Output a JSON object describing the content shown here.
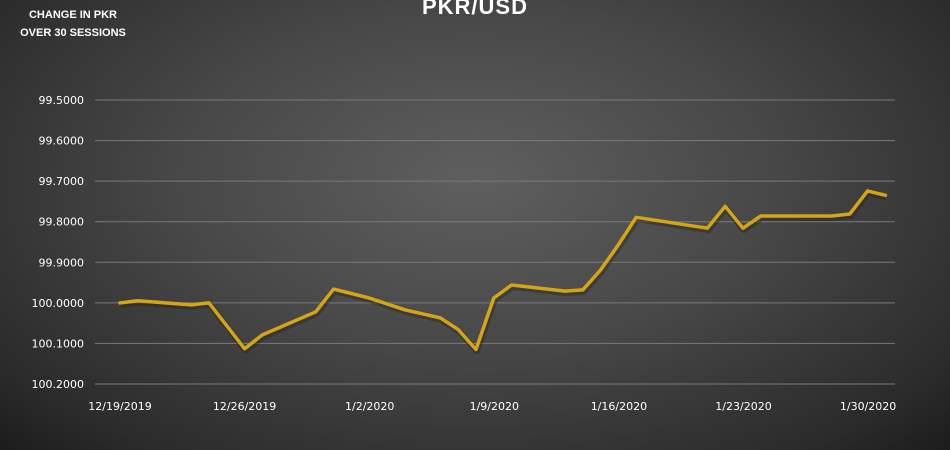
{
  "chart_data": {
    "type": "line",
    "title": "PKR/USD",
    "subtitle": "CHANGE IN PKR OVER 30 SESSIONS",
    "xlabel": "",
    "ylabel": "",
    "y_reversed": true,
    "ylim": [
      99.5,
      100.2
    ],
    "yticks": [
      "99.5000",
      "99.6000",
      "99.7000",
      "99.8000",
      "99.9000",
      "100.0000",
      "100.1000",
      "100.2000"
    ],
    "xticks": [
      "12/19/2019",
      "12/26/2019",
      "1/2/2020",
      "1/9/2020",
      "1/16/2020",
      "1/23/2020",
      "1/30/2020"
    ],
    "grid": true,
    "line_color": "#d4a514",
    "x": [
      "2019-12-19",
      "2019-12-20",
      "2019-12-23",
      "2019-12-24",
      "2019-12-26",
      "2019-12-27",
      "2019-12-30",
      "2019-12-31",
      "2020-01-02",
      "2020-01-04",
      "2020-01-06",
      "2020-01-07",
      "2020-01-08",
      "2020-01-09",
      "2020-01-10",
      "2020-01-13",
      "2020-01-14",
      "2020-01-15",
      "2020-01-16",
      "2020-01-17",
      "2020-01-21",
      "2020-01-22",
      "2020-01-23",
      "2020-01-24",
      "2020-01-28",
      "2020-01-29",
      "2020-01-30",
      "2020-01-31"
    ],
    "values": [
      100.0,
      99.995,
      100.005,
      100.0,
      100.113,
      100.079,
      100.022,
      99.966,
      99.988,
      100.017,
      100.037,
      100.066,
      100.115,
      99.988,
      99.956,
      99.971,
      99.968,
      99.919,
      99.857,
      99.789,
      99.816,
      99.762,
      99.816,
      99.786,
      99.786,
      99.781,
      99.724,
      99.735
    ]
  }
}
